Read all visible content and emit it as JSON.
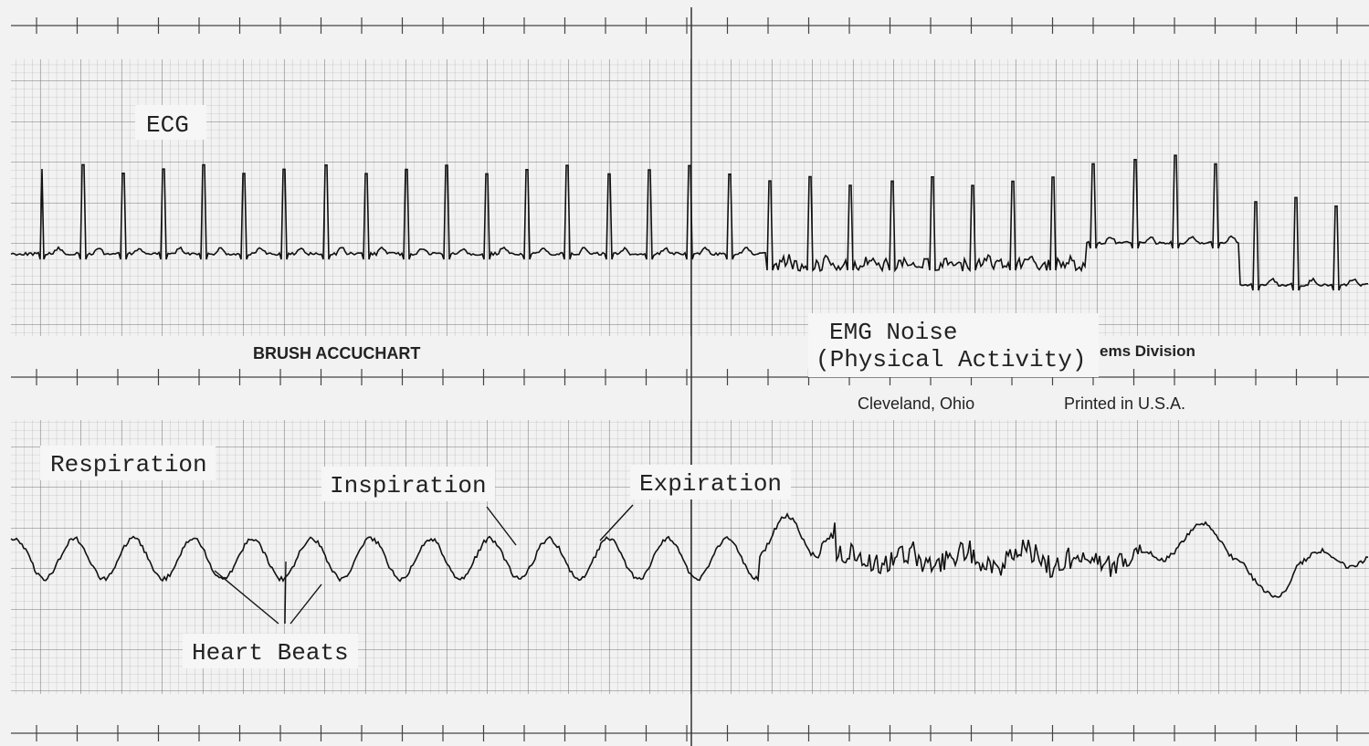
{
  "labels": {
    "ecg": "ECG",
    "brand": "BRUSH ACCUCHART",
    "emg_line1": "EMG Noise",
    "emg_line2": "(Physical Activity)",
    "division": "ems Division",
    "city": "Cleveland, Ohio",
    "printed": "Printed in U.S.A.",
    "respiration": "Respiration",
    "inspiration": "Inspiration",
    "expiration": "Expiration",
    "heart_beats": "Heart Beats"
  }
}
